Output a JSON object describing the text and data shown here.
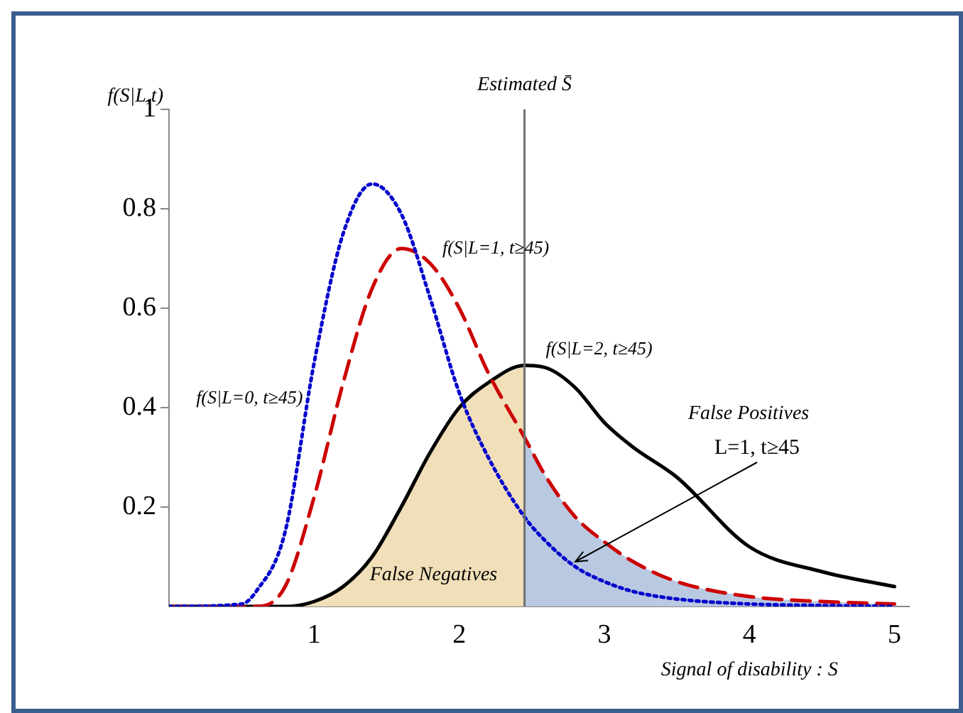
{
  "chart_data": {
    "type": "line",
    "xlabel": "Signal of disability : S",
    "ylabel": "f(S|L,t)",
    "x": [
      0,
      0.5,
      0.6,
      0.8,
      1,
      1.2,
      1.4,
      1.6,
      1.8,
      2,
      2.2,
      2.45,
      2.6,
      2.8,
      3,
      3.2,
      3.5,
      4,
      4.5,
      5
    ],
    "series": [
      {
        "type": "area",
        "name": "False Negatives",
        "color": "#f0dfb8",
        "values": [
          0,
          0,
          0,
          0,
          0.01,
          0.04,
          0.1,
          0.2,
          0.31,
          0.4,
          0.45,
          0.485,
          null,
          null,
          null,
          null,
          null,
          null,
          null,
          null
        ]
      },
      {
        "type": "area",
        "color": "#b9c9e2",
        "values": [
          null,
          null,
          null,
          null,
          null,
          null,
          null,
          null,
          null,
          null,
          null,
          0.34,
          0.26,
          0.18,
          0.13,
          0.09,
          0.05,
          0.02,
          0.01,
          0.005
        ]
      },
      {
        "color": "#0000cc",
        "line_style": "dotted",
        "values": [
          0,
          0.005,
          0.03,
          0.15,
          0.49,
          0.75,
          0.85,
          0.79,
          0.62,
          0.43,
          0.3,
          0.18,
          0.13,
          0.08,
          0.05,
          0.03,
          0.015,
          0.005,
          0.002,
          0
        ]
      },
      {
        "color": "#cc0000",
        "line_style": "dashed",
        "values": [
          0,
          0,
          0,
          0.04,
          0.22,
          0.45,
          0.64,
          0.72,
          0.69,
          0.6,
          0.47,
          0.34,
          0.26,
          0.18,
          0.13,
          0.09,
          0.05,
          0.02,
          0.01,
          0.005
        ]
      },
      {
        "color": "#000000",
        "line_style": "solid",
        "values": [
          0,
          0,
          0,
          0,
          0.01,
          0.04,
          0.1,
          0.2,
          0.31,
          0.4,
          0.45,
          0.485,
          0.48,
          0.44,
          0.37,
          0.32,
          0.26,
          0.12,
          0.07,
          0.04
        ]
      }
    ],
    "xlim": [
      0,
      5.1
    ],
    "xticks": [
      1,
      2,
      3,
      4,
      5
    ],
    "ylim": [
      0,
      1
    ],
    "yticks": [
      0.2,
      0.4,
      0.6,
      0.8,
      1
    ],
    "grid": false,
    "legend": false,
    "ref_lines": [
      {
        "axis": "x",
        "value": 2.45,
        "label": "Estimated S̄",
        "color": "#707070"
      }
    ],
    "annotations": [
      {
        "text": "f(S|L=0, t≥45)",
        "x": 1,
        "y": 0.49
      },
      {
        "text": "f(S|L=1, t≥45)",
        "x": 1.6,
        "y": 0.72
      },
      {
        "text": "f(S|L=2, t≥45)",
        "x": 2.45,
        "y": 0.485
      },
      "False Positives",
      {
        "text": "L=1, t≥45",
        "x": 2.8,
        "y": 0.09
      }
    ]
  }
}
